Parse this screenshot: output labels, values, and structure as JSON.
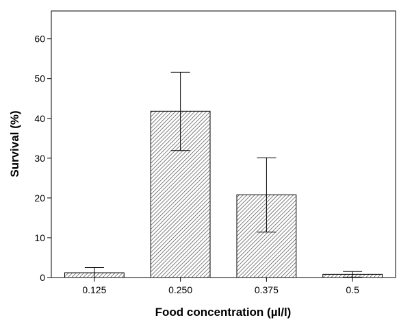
{
  "chart_data": {
    "type": "bar",
    "categories": [
      "0.125",
      "0.250",
      "0.375",
      "0.5"
    ],
    "values": [
      1.2,
      41.8,
      20.8,
      0.8
    ],
    "error_upper": [
      2.5,
      51.6,
      30.1,
      1.5
    ],
    "error_lower": [
      0.0,
      31.9,
      11.4,
      0.1
    ],
    "xlabel": "Food concentration (µl/l)",
    "ylabel": "Survival (%)",
    "ylim": [
      0,
      67
    ],
    "yticks": [
      0,
      10,
      20,
      30,
      40,
      50,
      60
    ],
    "ytick_labels": [
      "0",
      "10",
      "20",
      "30",
      "40",
      "50",
      "60"
    ],
    "grid": false,
    "bar_fill": "hatched",
    "colors": {
      "bar_fill": "#ffffff",
      "stroke": "#000000",
      "hatch": "#4a4a4a"
    }
  }
}
